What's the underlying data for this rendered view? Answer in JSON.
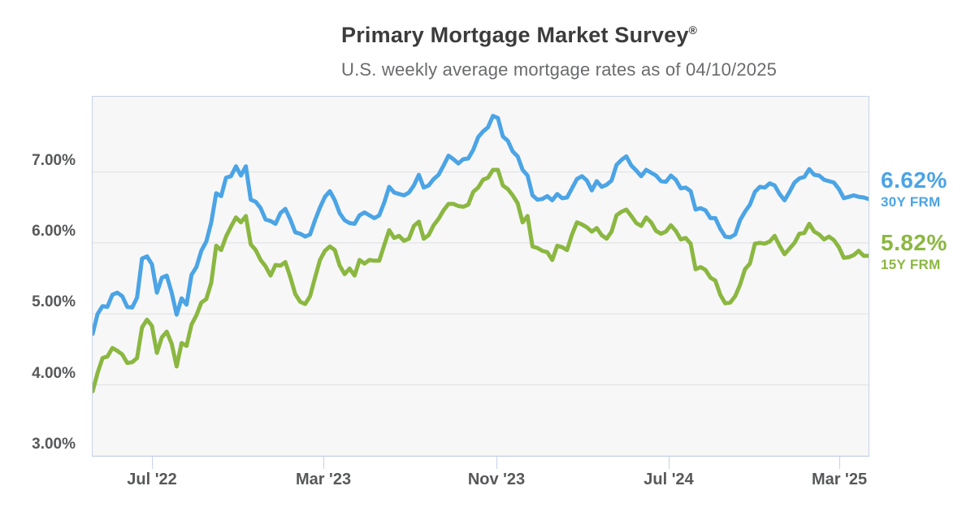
{
  "header": {
    "title": "Primary Mortgage Market Survey",
    "title_mark": "®",
    "subtitle": "U.S. weekly average mortgage rates as of 04/10/2025"
  },
  "colors": {
    "blue": "#4ba4e5",
    "green": "#8bb741",
    "grid": "#e0e0e1",
    "plot_bg": "#f7f7f8",
    "plot_border": "#c7d3e8",
    "axis_text": "#57585a"
  },
  "chart_data": {
    "type": "line",
    "title": "Primary Mortgage Market Survey®",
    "subtitle": "U.S. weekly average mortgage rates as of 04/10/2025",
    "x_unit": "weekly observations",
    "ylim": [
      3.0,
      8.06
    ],
    "grid": "horizontal-only",
    "legend_position": "right-of-plot",
    "y_ticks": [
      {
        "label": "7.00%",
        "value": 7.0
      },
      {
        "label": "6.00%",
        "value": 6.0
      },
      {
        "label": "5.00%",
        "value": 5.0
      },
      {
        "label": "4.00%",
        "value": 4.0
      },
      {
        "label": "3.00%",
        "value": 3.0
      }
    ],
    "x_ticks": [
      {
        "label": "Jul '22",
        "week_index": 12.14
      },
      {
        "label": "Mar '23",
        "week_index": 46.86
      },
      {
        "label": "Nov '23",
        "week_index": 81.86
      },
      {
        "label": "Jul '24",
        "week_index": 116.71
      },
      {
        "label": "Mar '25",
        "week_index": 151.29
      }
    ],
    "series": [
      {
        "name": "30Y FRM",
        "current_label": "6.62%",
        "color": "#4ba4e5",
        "values": [
          4.72,
          5.0,
          5.11,
          5.1,
          5.27,
          5.3,
          5.25,
          5.1,
          5.09,
          5.23,
          5.78,
          5.81,
          5.7,
          5.3,
          5.51,
          5.54,
          5.3,
          4.99,
          5.22,
          5.13,
          5.55,
          5.66,
          5.89,
          6.02,
          6.29,
          6.7,
          6.66,
          6.92,
          6.94,
          7.08,
          6.95,
          7.08,
          6.61,
          6.58,
          6.49,
          6.33,
          6.31,
          6.27,
          6.42,
          6.48,
          6.33,
          6.15,
          6.13,
          6.09,
          6.12,
          6.32,
          6.5,
          6.65,
          6.73,
          6.6,
          6.42,
          6.32,
          6.28,
          6.27,
          6.39,
          6.43,
          6.39,
          6.35,
          6.39,
          6.57,
          6.79,
          6.71,
          6.69,
          6.67,
          6.71,
          6.81,
          6.96,
          6.78,
          6.81,
          6.9,
          6.96,
          7.09,
          7.23,
          7.18,
          7.12,
          7.18,
          7.19,
          7.31,
          7.49,
          7.57,
          7.63,
          7.79,
          7.76,
          7.5,
          7.44,
          7.29,
          7.22,
          7.03,
          6.95,
          6.67,
          6.61,
          6.62,
          6.66,
          6.6,
          6.69,
          6.63,
          6.64,
          6.77,
          6.9,
          6.94,
          6.88,
          6.74,
          6.87,
          6.79,
          6.82,
          6.88,
          7.1,
          7.17,
          7.22,
          7.09,
          7.02,
          6.94,
          7.03,
          6.99,
          6.95,
          6.87,
          6.86,
          6.95,
          6.89,
          6.77,
          6.78,
          6.73,
          6.47,
          6.49,
          6.46,
          6.35,
          6.35,
          6.2,
          6.09,
          6.08,
          6.12,
          6.32,
          6.44,
          6.54,
          6.72,
          6.79,
          6.78,
          6.84,
          6.81,
          6.69,
          6.6,
          6.72,
          6.85,
          6.91,
          6.93,
          7.04,
          6.96,
          6.95,
          6.89,
          6.87,
          6.85,
          6.76,
          6.63,
          6.65,
          6.67,
          6.65,
          6.64,
          6.62
        ]
      },
      {
        "name": "15Y FRM",
        "current_label": "5.82%",
        "color": "#8bb741",
        "values": [
          3.91,
          4.17,
          4.38,
          4.4,
          4.52,
          4.48,
          4.43,
          4.31,
          4.32,
          4.38,
          4.81,
          4.92,
          4.83,
          4.45,
          4.67,
          4.75,
          4.58,
          4.26,
          4.59,
          4.55,
          4.85,
          4.98,
          5.16,
          5.21,
          5.44,
          5.96,
          5.9,
          6.09,
          6.23,
          6.36,
          6.29,
          6.38,
          5.98,
          5.9,
          5.76,
          5.67,
          5.54,
          5.69,
          5.68,
          5.73,
          5.52,
          5.28,
          5.17,
          5.14,
          5.25,
          5.51,
          5.76,
          5.89,
          5.95,
          5.9,
          5.68,
          5.56,
          5.64,
          5.54,
          5.76,
          5.71,
          5.76,
          5.75,
          5.75,
          5.97,
          6.18,
          6.07,
          6.1,
          6.03,
          6.06,
          6.24,
          6.3,
          6.06,
          6.11,
          6.25,
          6.34,
          6.46,
          6.55,
          6.55,
          6.52,
          6.51,
          6.54,
          6.72,
          6.78,
          6.89,
          6.92,
          7.03,
          7.03,
          6.81,
          6.76,
          6.67,
          6.56,
          6.29,
          6.38,
          5.95,
          5.93,
          5.89,
          5.87,
          5.76,
          5.96,
          5.94,
          5.9,
          6.12,
          6.29,
          6.26,
          6.22,
          6.16,
          6.21,
          6.11,
          6.06,
          6.16,
          6.39,
          6.44,
          6.47,
          6.38,
          6.28,
          6.24,
          6.36,
          6.29,
          6.17,
          6.13,
          6.16,
          6.25,
          6.17,
          6.05,
          6.07,
          5.99,
          5.63,
          5.66,
          5.62,
          5.51,
          5.47,
          5.27,
          5.15,
          5.16,
          5.25,
          5.41,
          5.63,
          5.71,
          5.99,
          6.0,
          5.99,
          6.02,
          6.1,
          5.96,
          5.84,
          5.92,
          6.0,
          6.13,
          6.14,
          6.27,
          6.16,
          6.12,
          6.05,
          6.09,
          6.04,
          5.94,
          5.79,
          5.8,
          5.83,
          5.89,
          5.82,
          5.82
        ]
      }
    ]
  }
}
